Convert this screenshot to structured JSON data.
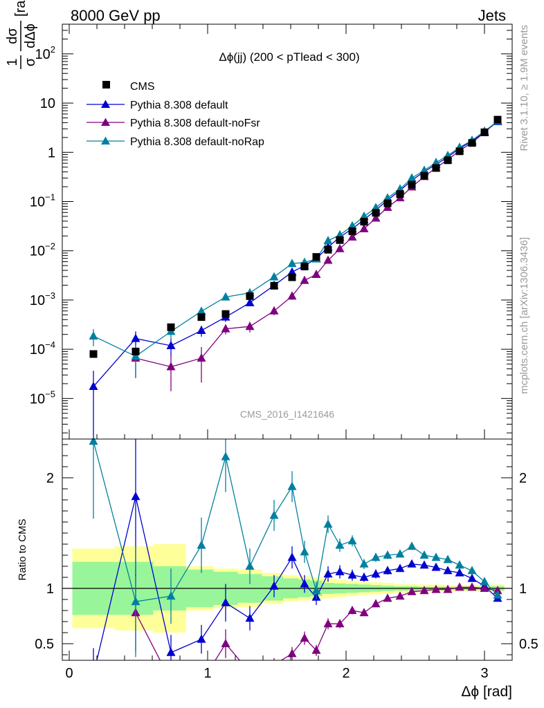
{
  "header": {
    "left": "8000 GeV pp",
    "right": "Jets"
  },
  "side_labels": {
    "rivet": "Rivet 3.1.10, ≥ 1.9M events",
    "mcplots": "mcplots.cern.ch [arXiv:1306.3436]"
  },
  "chart_data": {
    "type": "line",
    "title": "Δϕ(jj) (200 < pTlead <  300)",
    "analysis_label": "CMS_2016_I1421646",
    "xlabel": "Δϕ [rad]",
    "ylabel": "1/σ dσ/dΔϕ [rad⁻¹]",
    "ylabel_parts": {
      "frac_num": "1",
      "frac_den": "σ",
      "frac_num2": "dσ",
      "frac_den2": "dΔϕ",
      "unit": "[rad",
      "unit_exp": "-1",
      "unit_close": "]"
    },
    "ratio_ylabel": "Ratio to CMS",
    "xlim": [
      -0.05,
      3.2
    ],
    "ylim": [
      1.5e-06,
      400
    ],
    "yscale": "log",
    "ratio_ylim": [
      0.35,
      2.35
    ],
    "x_ticks": [
      "0",
      "1",
      "2",
      "3"
    ],
    "y_ticks": [
      {
        "v": 1e-05,
        "m": "10",
        "e": "−5"
      },
      {
        "v": 0.0001,
        "m": "10",
        "e": "−4"
      },
      {
        "v": 0.001,
        "m": "10",
        "e": "−3"
      },
      {
        "v": 0.01,
        "m": "10",
        "e": "−2"
      },
      {
        "v": 0.1,
        "m": "10",
        "e": "−1"
      },
      {
        "v": 1,
        "m": "1",
        "e": ""
      },
      {
        "v": 10,
        "m": "10",
        "e": ""
      },
      {
        "v": 100,
        "m": "10",
        "e": "2"
      }
    ],
    "ratio_ticks": [
      "0.5",
      "1",
      "2"
    ],
    "x": [
      0.175,
      0.48,
      0.735,
      0.955,
      1.13,
      1.305,
      1.48,
      1.61,
      1.7,
      1.785,
      1.87,
      1.955,
      2.045,
      2.13,
      2.215,
      2.3,
      2.39,
      2.475,
      2.565,
      2.65,
      2.735,
      2.82,
      2.91,
      3.0,
      3.095
    ],
    "data": {
      "name": "CMS",
      "color": "#000000",
      "y": [
        8e-05,
        9e-05,
        0.00028,
        0.00045,
        0.00052,
        0.0012,
        0.00195,
        0.0029,
        0.0048,
        0.0075,
        0.0105,
        0.0165,
        0.025,
        0.039,
        0.059,
        0.092,
        0.142,
        0.22,
        0.335,
        0.48,
        0.69,
        1.05,
        1.55,
        2.55,
        4.6
      ],
      "stat_band": [
        0.24,
        0.24,
        0.2,
        0.17,
        0.15,
        0.13,
        0.11,
        0.09,
        0.08,
        0.07,
        0.05,
        0.045,
        0.04,
        0.035,
        0.03,
        0.025,
        0.02,
        0.02,
        0.015,
        0.015,
        0.015,
        0.015,
        0.015,
        0.015,
        0.02
      ],
      "tot_band": [
        0.36,
        0.38,
        0.4,
        0.2,
        0.18,
        0.17,
        0.14,
        0.12,
        0.11,
        0.1,
        0.09,
        0.08,
        0.07,
        0.06,
        0.055,
        0.05,
        0.04,
        0.04,
        0.035,
        0.035,
        0.03,
        0.03,
        0.03,
        0.03,
        0.035
      ]
    },
    "series": [
      {
        "name": "Pythia 8.308 default",
        "color": "#0000d0",
        "y": [
          1.75e-05,
          0.000165,
          0.000118,
          0.00024,
          0.00045,
          0.00088,
          0.00198,
          0.0037,
          0.005,
          0.0069,
          0.0118,
          0.019,
          0.028,
          0.043,
          0.067,
          0.107,
          0.168,
          0.27,
          0.405,
          0.57,
          0.8,
          1.2,
          1.68,
          2.6,
          4.2
        ],
        "yerr": [
          1.9e-05,
          6.5e-05,
          4.5e-05,
          6e-05,
          9e-05,
          0.00013,
          0.0002,
          0.0003,
          0.0004,
          0.0005,
          0.0007,
          0.001,
          0.0012,
          0.0016,
          0.0022,
          0.003,
          0.004,
          0.005,
          0.007,
          0.009,
          0.011,
          0.014,
          0.018,
          0.025,
          0.035
        ],
        "ratio": [
          0.22,
          1.83,
          0.42,
          0.54,
          0.87,
          0.73,
          1.02,
          1.28,
          1.04,
          0.92,
          1.13,
          1.15,
          1.12,
          1.1,
          1.13,
          1.16,
          1.18,
          1.22,
          1.21,
          1.19,
          1.16,
          1.14,
          1.09,
          1.02,
          0.91
        ],
        "ratio_err": [
          0.24,
          0.72,
          0.16,
          0.13,
          0.17,
          0.11,
          0.1,
          0.1,
          0.08,
          0.07,
          0.07,
          0.06,
          0.05,
          0.04,
          0.04,
          0.035,
          0.03,
          0.025,
          0.02,
          0.02,
          0.018,
          0.015,
          0.013,
          0.012,
          0.01
        ]
      },
      {
        "name": "Pythia 8.308 default-noFsr",
        "color": "#800080",
        "y": [
          null,
          6.6e-05,
          4.4e-05,
          6.6e-05,
          0.00026,
          0.00029,
          0.0006,
          0.0012,
          0.0025,
          0.0033,
          0.0064,
          0.011,
          0.019,
          0.028,
          0.046,
          0.076,
          0.119,
          0.198,
          0.322,
          0.488,
          0.706,
          1.08,
          1.58,
          2.52,
          4.35
        ],
        "yerr": [
          0,
          4e-05,
          3e-05,
          4.5e-05,
          6e-05,
          7e-05,
          0.00011,
          0.00019,
          0.00028,
          0.00034,
          0.0005,
          0.0007,
          0.0009,
          0.0012,
          0.0016,
          0.0023,
          0.0031,
          0.0042,
          0.0056,
          0.007,
          0.009,
          0.012,
          0.015,
          0.02,
          0.03
        ],
        "ratio": [
          null,
          0.78,
          0.16,
          0.15,
          0.5,
          0.24,
          0.31,
          0.41,
          0.55,
          0.44,
          0.68,
          0.68,
          0.8,
          0.78,
          0.86,
          0.91,
          0.93,
          0.97,
          0.98,
          0.99,
          0.99,
          1.01,
          1.01,
          1.0,
          0.98
        ],
        "ratio_err": [
          0,
          0.35,
          0.1,
          0.1,
          0.13,
          0.07,
          0.06,
          0.06,
          0.06,
          0.05,
          0.05,
          0.04,
          0.035,
          0.03,
          0.028,
          0.025,
          0.02,
          0.018,
          0.016,
          0.015,
          0.014,
          0.013,
          0.012,
          0.011,
          0.01
        ]
      },
      {
        "name": "Pythia 8.308 default-noRap",
        "color": "#0080a0",
        "y": [
          0.000185,
          7.2e-05,
          0.00023,
          0.00059,
          0.00115,
          0.0014,
          0.00295,
          0.0055,
          0.0058,
          0.0068,
          0.016,
          0.021,
          0.032,
          0.05,
          0.075,
          0.118,
          0.18,
          0.3,
          0.43,
          0.62,
          0.86,
          1.26,
          1.75,
          2.68,
          4.3
        ],
        "yerr": [
          7e-05,
          4.5e-05,
          7e-05,
          0.00011,
          0.00016,
          0.00019,
          0.00028,
          0.00038,
          0.00042,
          0.0005,
          0.0008,
          0.001,
          0.0013,
          0.0018,
          0.0024,
          0.0032,
          0.0043,
          0.0056,
          0.0072,
          0.009,
          0.011,
          0.014,
          0.018,
          0.025,
          0.035
        ],
        "ratio": [
          2.33,
          0.88,
          0.93,
          1.39,
          2.19,
          1.2,
          1.66,
          1.92,
          1.33,
          0.98,
          1.58,
          1.39,
          1.43,
          1.22,
          1.28,
          1.3,
          1.31,
          1.38,
          1.3,
          1.28,
          1.26,
          1.21,
          1.16,
          1.06,
          0.94
        ],
        "ratio_err": [
          0.7,
          0.5,
          0.25,
          0.25,
          0.32,
          0.16,
          0.14,
          0.14,
          0.1,
          0.08,
          0.08,
          0.06,
          0.05,
          0.045,
          0.04,
          0.035,
          0.03,
          0.025,
          0.022,
          0.02,
          0.018,
          0.016,
          0.014,
          0.012,
          0.011
        ]
      }
    ],
    "legend": {
      "placement": "top-left"
    }
  }
}
